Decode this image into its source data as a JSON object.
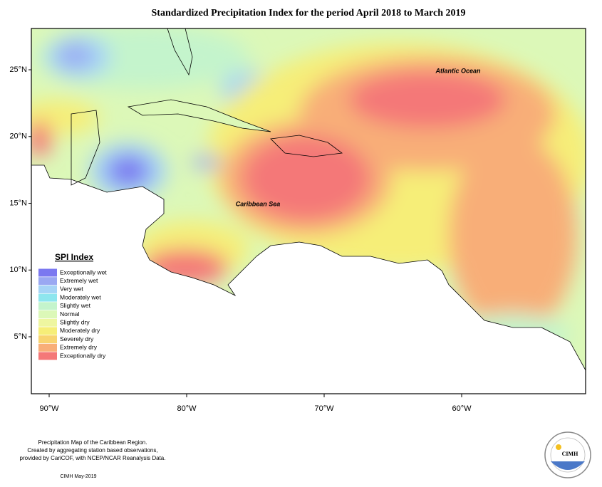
{
  "title": "Standardized Precipitation Index for the period April 2018 to March 2019",
  "map": {
    "labels": [
      "Atlantic Ocean",
      "Caribbean Sea"
    ],
    "lat_ticks": [
      {
        "value": 25,
        "label": "25°N"
      },
      {
        "value": 20,
        "label": "20°N"
      },
      {
        "value": 15,
        "label": "15°N"
      },
      {
        "value": 10,
        "label": "10°N"
      },
      {
        "value": 5,
        "label": "5°N"
      }
    ],
    "lon_ticks": [
      {
        "value": -90,
        "label": "90°W"
      },
      {
        "value": -80,
        "label": "80°W"
      },
      {
        "value": -70,
        "label": "70°W"
      },
      {
        "value": -60,
        "label": "60°W"
      }
    ]
  },
  "legend": {
    "title": "SPI Index",
    "items": [
      {
        "label": "Exceptionally wet",
        "color": "#7b78f0"
      },
      {
        "label": "Extremely wet",
        "color": "#9aa8f2"
      },
      {
        "label": "Very wet",
        "color": "#a6d4f6"
      },
      {
        "label": "Moderately wet",
        "color": "#8ee6ee"
      },
      {
        "label": "Slightly wet",
        "color": "#c4f4cc"
      },
      {
        "label": "Normal",
        "color": "#dcf8b8"
      },
      {
        "label": "Slightly dry",
        "color": "#eef6a0"
      },
      {
        "label": "Moderately dry",
        "color": "#f6ee78"
      },
      {
        "label": "Severely dry",
        "color": "#f8d470"
      },
      {
        "label": "Extremely dry",
        "color": "#f8ae78"
      },
      {
        "label": "Exceptionally dry",
        "color": "#f47878"
      }
    ]
  },
  "footer": {
    "lines": [
      "Precipitation Map of the Caribbean Region.",
      "Created by aggregating station based observations,",
      "provided by CariCOF, with NCEP/NCAR Reanalysis Data."
    ],
    "credit": "CIMH May-2019"
  },
  "logo": {
    "text": "CIMH"
  }
}
